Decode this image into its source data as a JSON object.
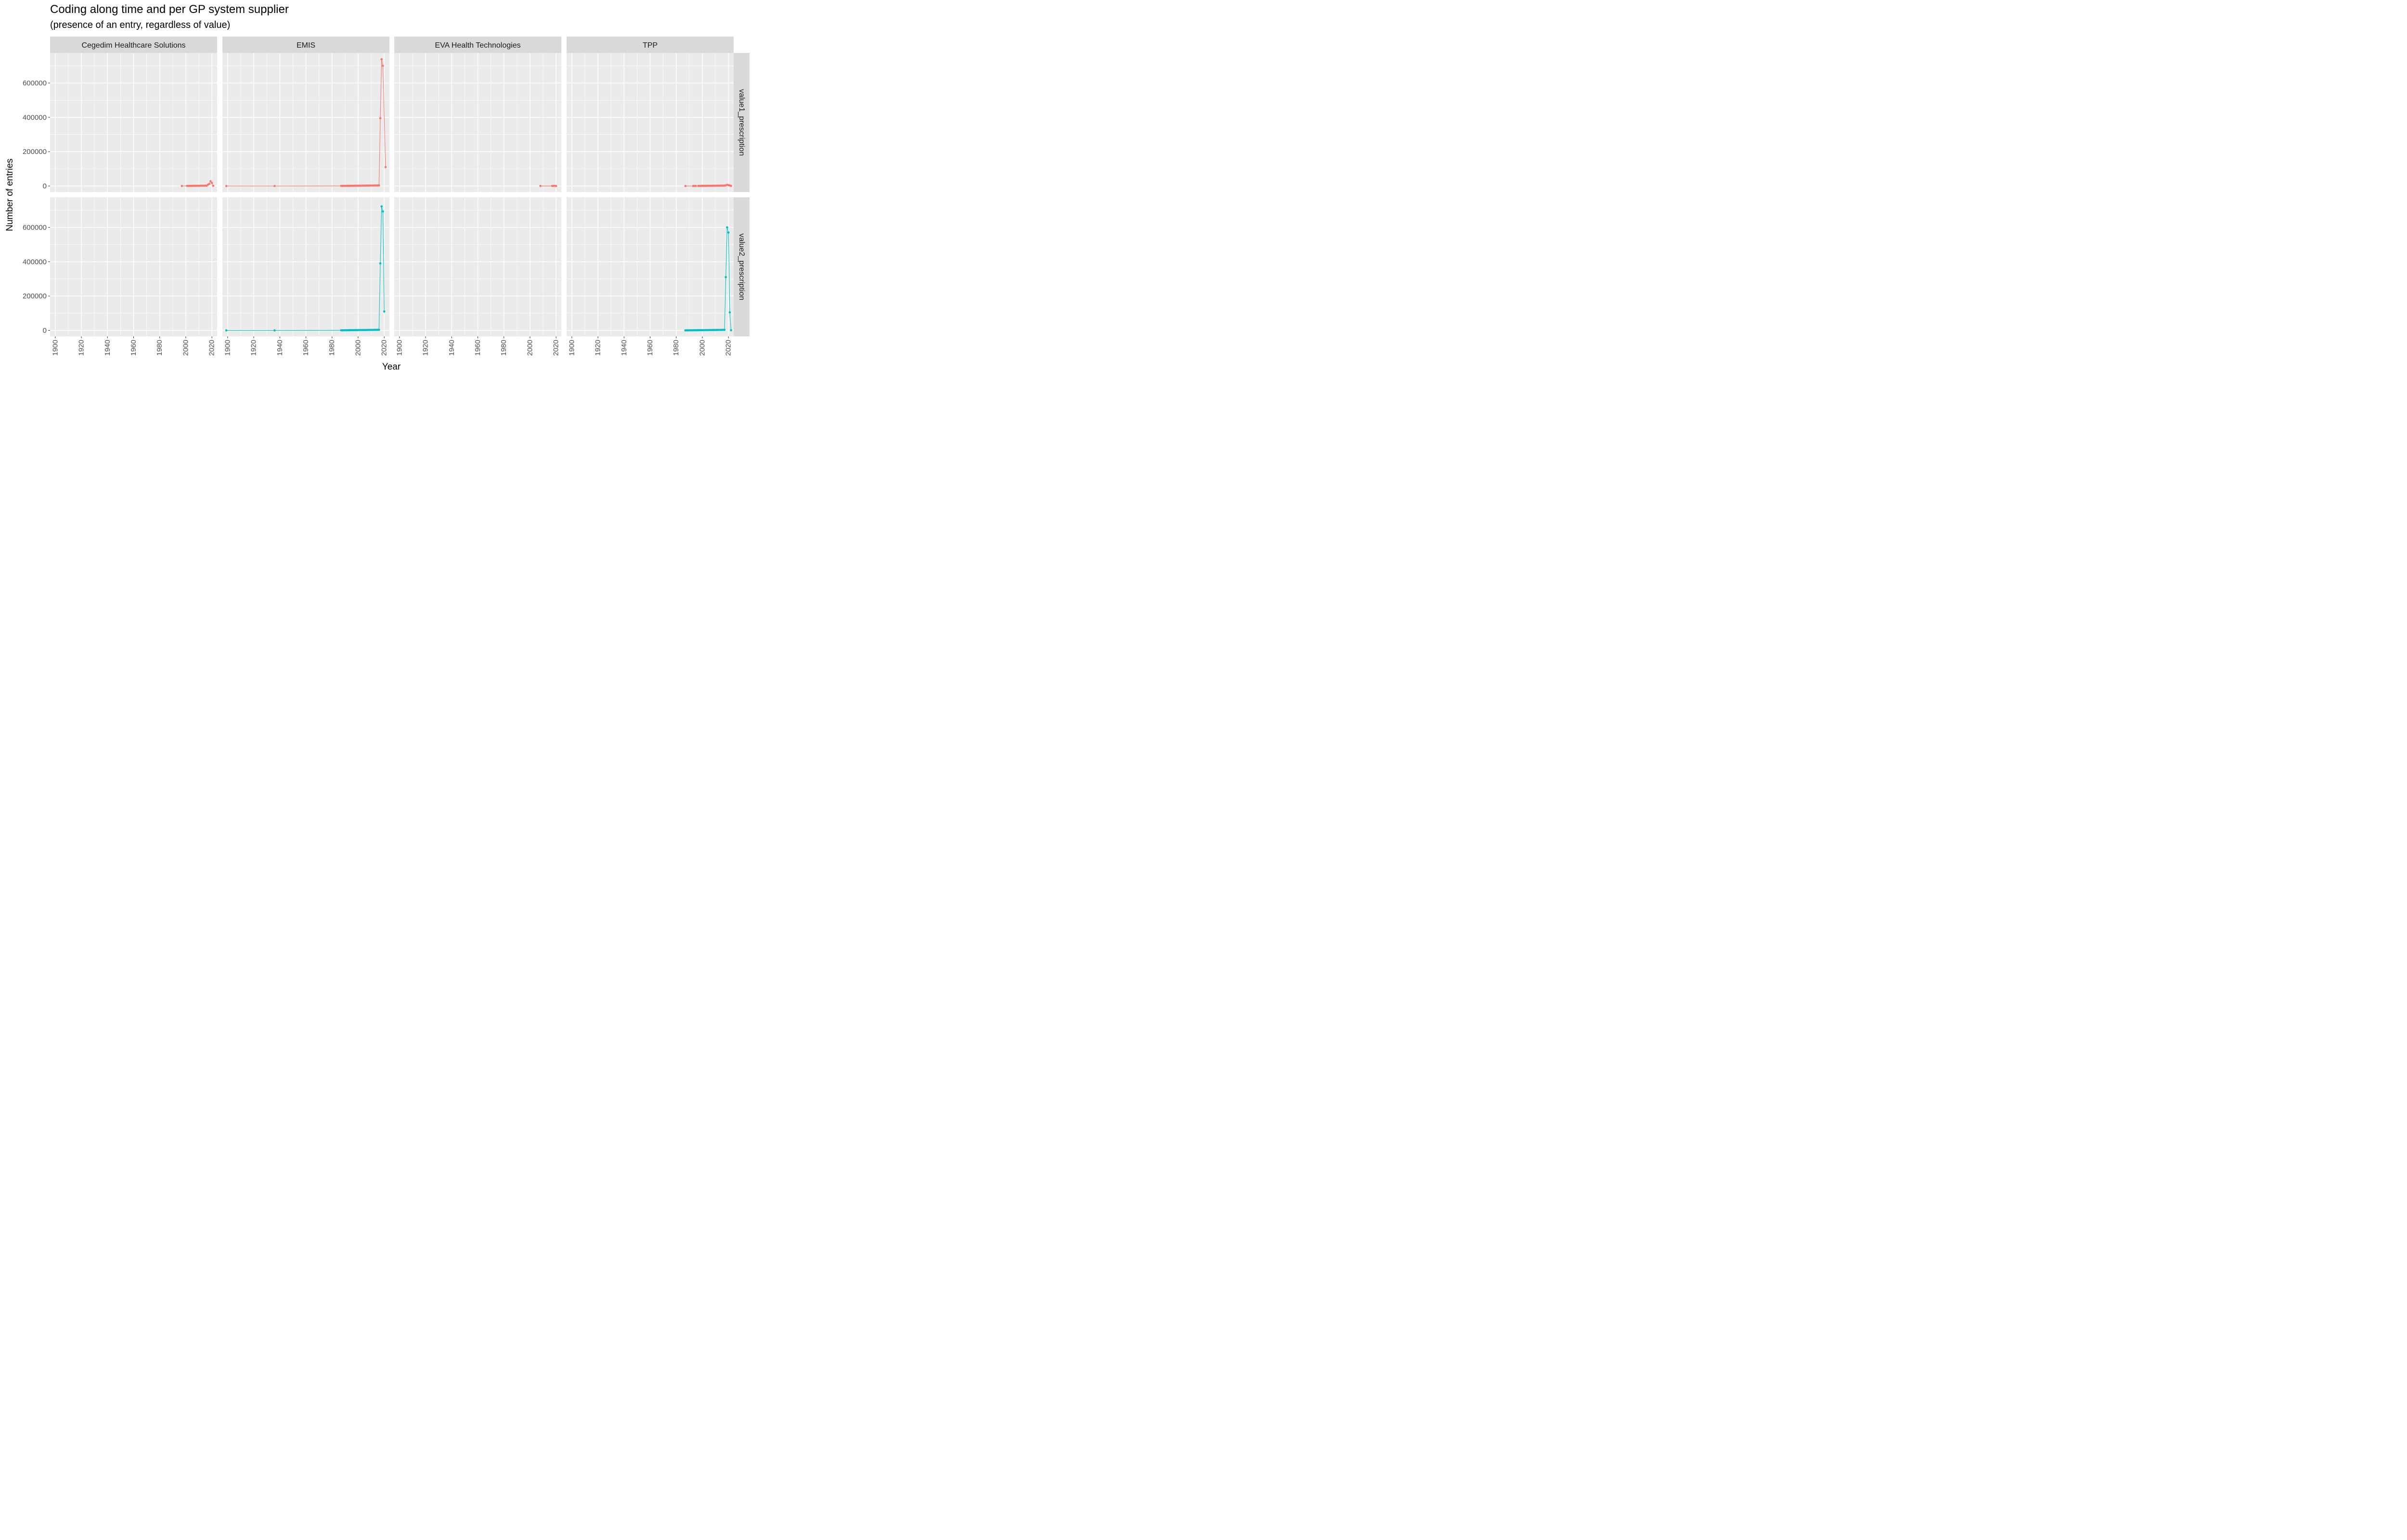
{
  "title": "Coding along time and per GP system supplier",
  "subtitle": "(presence of an entry, regardless of value)",
  "chart_data": {
    "type": "line",
    "title": "Coding along time and per GP system supplier",
    "subtitle": "(presence of an entry, regardless of value)",
    "xlabel": "Year",
    "ylabel": "Number of entries",
    "xlim": [
      1896,
      2024
    ],
    "ylim": [
      -35000,
      775000
    ],
    "x_ticks": [
      1900,
      1920,
      1940,
      1960,
      1980,
      2000,
      2020
    ],
    "y_ticks": [
      0,
      200000,
      400000,
      600000
    ],
    "y_tick_labels": [
      "0",
      "200000",
      "400000",
      "600000"
    ],
    "facet_columns": [
      "Cegedim Healthcare Solutions",
      "EMIS",
      "EVA Health Technologies",
      "TPP"
    ],
    "facet_rows": [
      "value1_prescription",
      "value2_prescription"
    ],
    "row_colors": {
      "value1_prescription": "#F8766D",
      "value2_prescription": "#00BFC4"
    },
    "grid": true,
    "legend": "none",
    "panels": [
      {
        "column": "Cegedim Healthcare Solutions",
        "row": "value1_prescription",
        "x": [
          1997,
          2001,
          2002,
          2003,
          2004,
          2005,
          2006,
          2007,
          2008,
          2009,
          2010,
          2011,
          2012,
          2013,
          2014,
          2015,
          2016,
          2017,
          2018,
          2019,
          2020,
          2021
        ],
        "y": [
          200,
          500,
          700,
          800,
          900,
          1000,
          1100,
          1200,
          1300,
          1400,
          1500,
          1600,
          1700,
          1800,
          1900,
          2000,
          2200,
          8000,
          12000,
          28000,
          18000,
          1500
        ]
      },
      {
        "column": "EMIS",
        "row": "value1_prescription",
        "x": [
          1899,
          1936,
          1987,
          1988,
          1989,
          1990,
          1991,
          1992,
          1993,
          1994,
          1995,
          1996,
          1997,
          1998,
          1999,
          2000,
          2001,
          2002,
          2003,
          2004,
          2005,
          2006,
          2007,
          2008,
          2009,
          2010,
          2011,
          2012,
          2013,
          2014,
          2015,
          2016,
          2017,
          2018,
          2019,
          2021
        ],
        "y": [
          50,
          100,
          500,
          600,
          700,
          800,
          900,
          1000,
          1100,
          1200,
          1300,
          1400,
          1500,
          1600,
          1700,
          1800,
          1900,
          2000,
          2100,
          2200,
          2300,
          2400,
          2500,
          2600,
          2700,
          2800,
          2900,
          3000,
          3100,
          3200,
          3300,
          3400,
          395000,
          738000,
          700000,
          110000
        ]
      },
      {
        "column": "EVA Health Technologies",
        "row": "value1_prescription",
        "x": [
          2008,
          2017,
          2018,
          2019,
          2020
        ],
        "y": [
          200,
          300,
          500,
          600,
          300
        ]
      },
      {
        "column": "TPP",
        "row": "value1_prescription",
        "x": [
          1987,
          1993,
          1994,
          1995,
          1997,
          1998,
          1999,
          2000,
          2001,
          2002,
          2003,
          2004,
          2005,
          2006,
          2007,
          2008,
          2009,
          2010,
          2011,
          2012,
          2013,
          2014,
          2015,
          2016,
          2017,
          2018,
          2019,
          2020,
          2021,
          2022
        ],
        "y": [
          100,
          200,
          300,
          400,
          500,
          600,
          700,
          800,
          900,
          1000,
          1100,
          1200,
          1300,
          1400,
          1500,
          1600,
          1700,
          1800,
          1900,
          2000,
          2100,
          2200,
          2300,
          2400,
          2500,
          4000,
          7000,
          5000,
          3000,
          500
        ]
      },
      {
        "column": "Cegedim Healthcare Solutions",
        "row": "value2_prescription",
        "x": [],
        "y": []
      },
      {
        "column": "EMIS",
        "row": "value2_prescription",
        "x": [
          1899,
          1936,
          1987,
          1988,
          1989,
          1990,
          1991,
          1992,
          1993,
          1994,
          1995,
          1996,
          1997,
          1998,
          1999,
          2000,
          2001,
          2002,
          2003,
          2004,
          2005,
          2006,
          2007,
          2008,
          2009,
          2010,
          2011,
          2012,
          2013,
          2014,
          2015,
          2016,
          2017,
          2018,
          2019,
          2020
        ],
        "y": [
          50,
          100,
          500,
          600,
          700,
          800,
          900,
          1000,
          1100,
          1200,
          1300,
          1400,
          1500,
          1600,
          1700,
          1800,
          1900,
          2000,
          2100,
          2200,
          2300,
          2400,
          2500,
          2600,
          2700,
          2800,
          2900,
          3000,
          3100,
          3200,
          3300,
          3400,
          390000,
          722000,
          693000,
          110000
        ]
      },
      {
        "column": "EVA Health Technologies",
        "row": "value2_prescription",
        "x": [],
        "y": []
      },
      {
        "column": "TPP",
        "row": "value2_prescription",
        "x": [
          1987,
          1988,
          1989,
          1990,
          1991,
          1992,
          1993,
          1994,
          1995,
          1996,
          1997,
          1998,
          1999,
          2000,
          2001,
          2002,
          2003,
          2004,
          2005,
          2006,
          2007,
          2008,
          2009,
          2010,
          2011,
          2012,
          2013,
          2014,
          2015,
          2016,
          2017,
          2018,
          2019,
          2020,
          2021,
          2022
        ],
        "y": [
          100,
          200,
          300,
          400,
          500,
          600,
          700,
          800,
          900,
          1000,
          1100,
          1200,
          1300,
          1400,
          1500,
          1600,
          1700,
          1800,
          1900,
          2000,
          2100,
          2200,
          2300,
          2400,
          2500,
          2600,
          2700,
          2800,
          2900,
          3000,
          3100,
          310000,
          600000,
          570000,
          105000,
          1000
        ]
      }
    ]
  }
}
